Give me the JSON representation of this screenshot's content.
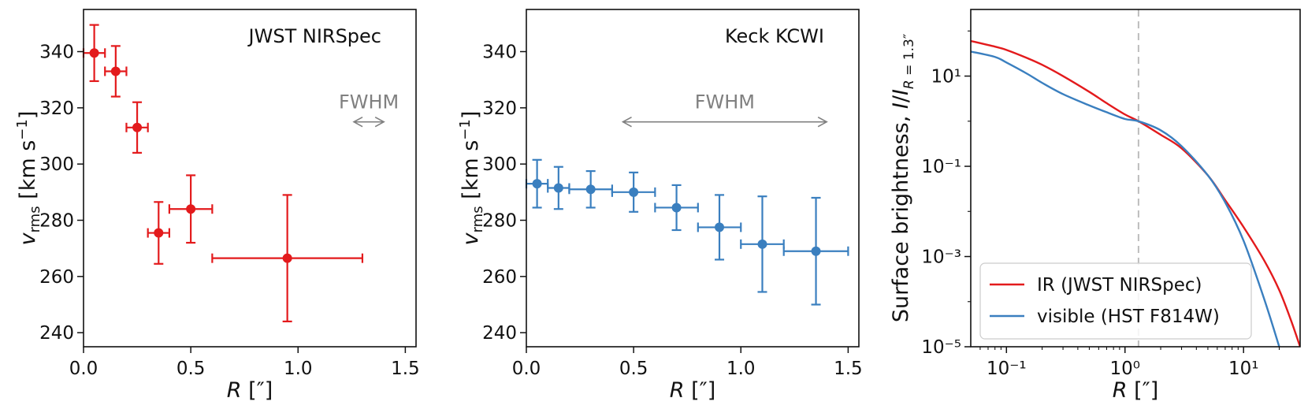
{
  "figure": {
    "colors": {
      "nirspec": "#e31a1c",
      "kcwi": "#3a7fbf",
      "ir": "#e31a1c",
      "visible": "#3a7fbf",
      "fwhm": "#808080",
      "ref_line": "#bdbdbd"
    }
  },
  "chart_data": [
    {
      "type": "scatter",
      "panel": "left",
      "annotation": "JWST NIRSpec",
      "xlabel": "R [″]",
      "ylabel": "v_rms [km s⁻¹]",
      "xlim": [
        0.0,
        1.55
      ],
      "ylim": [
        235,
        355
      ],
      "xticks": [
        0.0,
        0.5,
        1.0,
        1.5
      ],
      "xtick_labels": [
        "0.0",
        "0.5",
        "1.0",
        "1.5"
      ],
      "yticks": [
        240,
        260,
        280,
        300,
        320,
        340
      ],
      "ytick_labels": [
        "240",
        "260",
        "280",
        "300",
        "320",
        "340"
      ],
      "fwhm": {
        "label": "FWHM",
        "x_start": 1.26,
        "x_end": 1.4,
        "y": 315
      },
      "points": [
        {
          "x": 0.05,
          "y": 339.5,
          "xerr": 0.05,
          "yerr": 10
        },
        {
          "x": 0.15,
          "y": 333,
          "xerr": 0.05,
          "yerr": 9
        },
        {
          "x": 0.25,
          "y": 313,
          "xerr": 0.05,
          "yerr": 9
        },
        {
          "x": 0.35,
          "y": 275.5,
          "xerr": 0.05,
          "yerr": 11
        },
        {
          "x": 0.5,
          "y": 284,
          "xerr": 0.1,
          "yerr": 12
        },
        {
          "x": 0.95,
          "y": 266.5,
          "xerr": 0.35,
          "yerr": 22.5
        }
      ]
    },
    {
      "type": "scatter",
      "panel": "middle",
      "annotation": "Keck KCWI",
      "xlabel": "R [″]",
      "ylabel": "v_rms [km s⁻¹]",
      "xlim": [
        0.0,
        1.55
      ],
      "ylim": [
        235,
        355
      ],
      "xticks": [
        0.0,
        0.5,
        1.0,
        1.5
      ],
      "xtick_labels": [
        "0.0",
        "0.5",
        "1.0",
        "1.5"
      ],
      "yticks": [
        240,
        260,
        280,
        300,
        320,
        340
      ],
      "ytick_labels": [
        "240",
        "260",
        "280",
        "300",
        "320",
        "340"
      ],
      "fwhm": {
        "label": "FWHM",
        "x_start": 0.45,
        "x_end": 1.4,
        "y": 315
      },
      "points": [
        {
          "x": 0.05,
          "y": 293,
          "xerr": 0.05,
          "yerr": 8.5
        },
        {
          "x": 0.15,
          "y": 291.5,
          "xerr": 0.05,
          "yerr": 7.5
        },
        {
          "x": 0.3,
          "y": 291,
          "xerr": 0.1,
          "yerr": 6.5
        },
        {
          "x": 0.5,
          "y": 290,
          "xerr": 0.1,
          "yerr": 7
        },
        {
          "x": 0.7,
          "y": 284.5,
          "xerr": 0.1,
          "yerr": 8
        },
        {
          "x": 0.9,
          "y": 277.5,
          "xerr": 0.1,
          "yerr": 11.5
        },
        {
          "x": 1.1,
          "y": 271.5,
          "xerr": 0.1,
          "yerr": 17
        },
        {
          "x": 1.35,
          "y": 269,
          "xerr": 0.15,
          "yerr": 19
        }
      ]
    },
    {
      "type": "line",
      "panel": "right",
      "xscale": "log",
      "yscale": "log",
      "xlabel": "R [″]",
      "ylabel": "Surface brightness, I/I_R = 1.3″",
      "xlim": [
        0.05,
        30
      ],
      "ylim": [
        1e-05,
        300
      ],
      "xticks": [
        0.1,
        1,
        10
      ],
      "xtick_labels": [
        "10⁻¹",
        "10⁰",
        "10¹"
      ],
      "yticks": [
        1e-05,
        0.001,
        0.1,
        10
      ],
      "ytick_labels": [
        "10⁻⁵",
        "10⁻³",
        "10⁻¹",
        "10¹"
      ],
      "vline_x": 1.3,
      "legend_location": "lower-left",
      "series": [
        {
          "name": "IR (JWST NIRSpec)",
          "x": [
            0.05,
            0.08,
            0.1,
            0.15,
            0.2,
            0.3,
            0.5,
            0.7,
            1.0,
            1.3,
            2.0,
            3.0,
            5.0,
            7.0,
            10.0,
            15.0,
            20.0,
            25.0,
            30.0
          ],
          "y": [
            60,
            45,
            38,
            25,
            17.8,
            10,
            4.47,
            2.51,
            1.41,
            1.0,
            0.5,
            0.25,
            0.063,
            0.0178,
            0.0045,
            0.0008,
            0.00018,
            4e-05,
            1e-05
          ]
        },
        {
          "name": "visible (HST F814W)",
          "x": [
            0.05,
            0.08,
            0.1,
            0.15,
            0.2,
            0.3,
            0.5,
            0.7,
            1.0,
            1.3,
            2.0,
            3.0,
            5.0,
            7.0,
            10.0,
            15.0,
            20.0
          ],
          "y": [
            35,
            26.6,
            20,
            11.2,
            7.08,
            3.98,
            2.24,
            1.58,
            1.12,
            1.0,
            0.63,
            0.28,
            0.063,
            0.0159,
            0.00224,
            0.00011,
            1e-05
          ]
        }
      ]
    }
  ]
}
